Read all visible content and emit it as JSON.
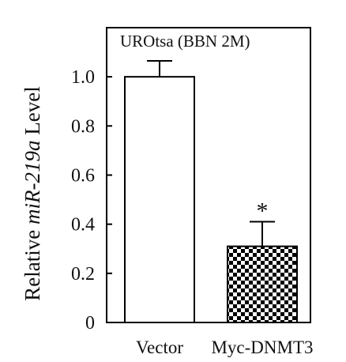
{
  "chart_data": {
    "type": "bar",
    "title": "UROtsa (BBN 2M)",
    "ylabel_parts": [
      "Relative ",
      "miR-219a",
      " Level"
    ],
    "xlabel": "",
    "categories": [
      "Vector",
      "Myc-DNMT3"
    ],
    "values": [
      1.0,
      0.31
    ],
    "errors": [
      0.065,
      0.1
    ],
    "fills": [
      "white",
      "checkered"
    ],
    "annotations": [
      "",
      "*"
    ],
    "yticks": [
      "0",
      "0.2",
      "0.4",
      "0.6",
      "0.8",
      "1.0"
    ],
    "ytick_values": [
      0,
      0.2,
      0.4,
      0.6,
      0.8,
      1.0
    ],
    "ylim": [
      0,
      1.2
    ],
    "grid": false
  }
}
